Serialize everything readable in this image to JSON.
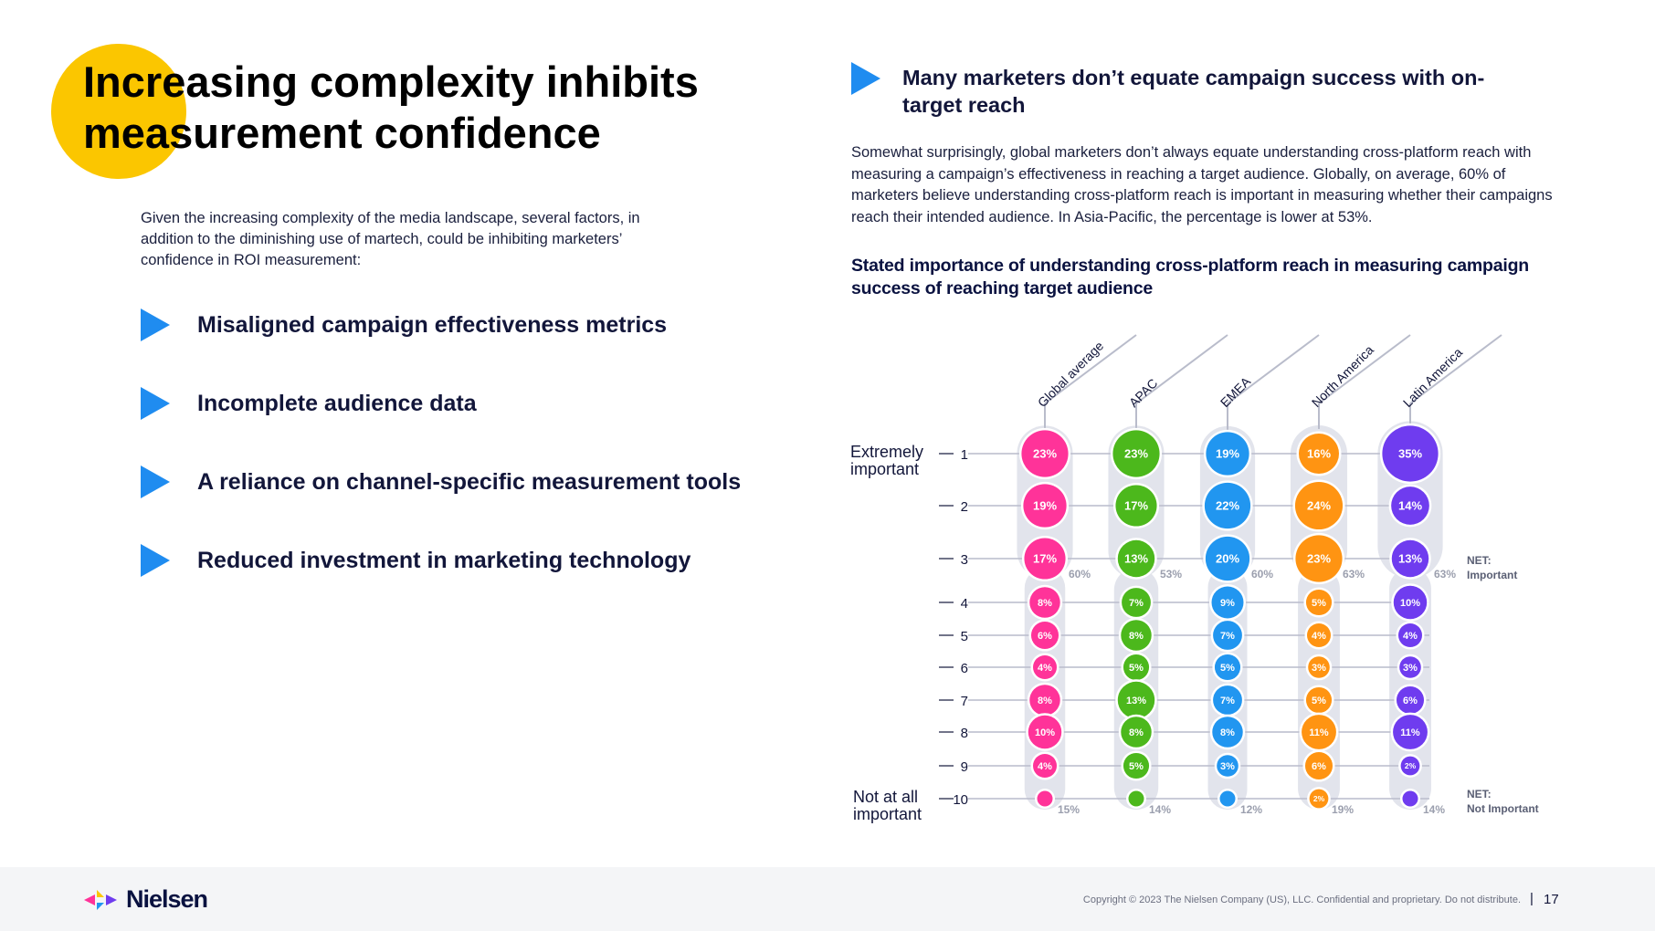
{
  "left": {
    "title": "Increasing complexity inhibits measurement confidence",
    "intro": "Given the increasing complexity of the media landscape, several factors, in addition to the diminishing use of martech, could be inhibiting marketers’ confidence in ROI measurement:",
    "points": [
      "Misaligned campaign effectiveness metrics",
      "Incomplete audience data",
      "A reliance on channel-specific measurement tools",
      "Reduced investment in marketing technology"
    ]
  },
  "right": {
    "heading": "Many marketers don’t equate campaign success with on-target reach",
    "body": "Somewhat surprisingly, global marketers don’t always equate understanding cross-platform reach with measuring a campaign’s effectiveness in reaching a target audience. Globally, on average, 60% of marketers believe understanding cross-platform reach is important in measuring whether their campaigns reach their intended audience. In Asia-Pacific, the percentage is lower at 53%.",
    "chart_title": "Stated importance of understanding cross-platform reach in measuring campaign success of reaching target audience"
  },
  "chart_data": {
    "type": "bubble-matrix",
    "title": "Stated importance of understanding cross-platform reach in measuring campaign success of reaching target audience",
    "scale": [
      1,
      2,
      3,
      4,
      5,
      6,
      7,
      8,
      9,
      10
    ],
    "scale_top_label": "Extremely important",
    "scale_bottom_label": "Not at all important",
    "net_important_label": "NET: Important",
    "net_not_important_label": "NET: Not Important",
    "series": [
      {
        "name": "Global average",
        "color": "#ff3399",
        "values": [
          23,
          19,
          17,
          8,
          6,
          4,
          8,
          10,
          4,
          1
        ],
        "labels": [
          "23%",
          "19%",
          "17%",
          "8%",
          "6%",
          "4%",
          "8%",
          "10%",
          "4%",
          ""
        ],
        "net_important": "60%",
        "net_not_important": "15%"
      },
      {
        "name": "APAC",
        "color": "#4cb81c",
        "values": [
          23,
          17,
          13,
          7,
          8,
          5,
          13,
          8,
          5,
          1
        ],
        "labels": [
          "23%",
          "17%",
          "13%",
          "7%",
          "8%",
          "5%",
          "13%",
          "8%",
          "5%",
          ""
        ],
        "net_important": "53%",
        "net_not_important": "14%"
      },
      {
        "name": "EMEA",
        "color": "#2196f0",
        "values": [
          19,
          22,
          20,
          9,
          7,
          5,
          7,
          8,
          3,
          1
        ],
        "labels": [
          "19%",
          "22%",
          "20%",
          "9%",
          "7%",
          "5%",
          "7%",
          "8%",
          "3%",
          ""
        ],
        "net_important": "60%",
        "net_not_important": "12%"
      },
      {
        "name": "North America",
        "color": "#ff9412",
        "values": [
          16,
          24,
          23,
          5,
          4,
          3,
          5,
          11,
          6,
          2
        ],
        "labels": [
          "16%",
          "24%",
          "23%",
          "5%",
          "4%",
          "3%",
          "5%",
          "11%",
          "6%",
          "2%"
        ],
        "net_important": "63%",
        "net_not_important": "19%"
      },
      {
        "name": "Latin America",
        "color": "#6f3cef",
        "values": [
          35,
          14,
          13,
          10,
          4,
          3,
          6,
          11,
          2,
          1
        ],
        "labels": [
          "35%",
          "14%",
          "13%",
          "10%",
          "4%",
          "3%",
          "6%",
          "11%",
          "2%",
          ""
        ],
        "net_important": "63%",
        "net_not_important": "14%"
      }
    ]
  },
  "footer": {
    "brand": "Nielsen",
    "copyright": "Copyright © 2023 The Nielsen Company (US), LLC. Confidential and proprietary. Do not distribute.",
    "separator": "|",
    "page_number": "17"
  }
}
